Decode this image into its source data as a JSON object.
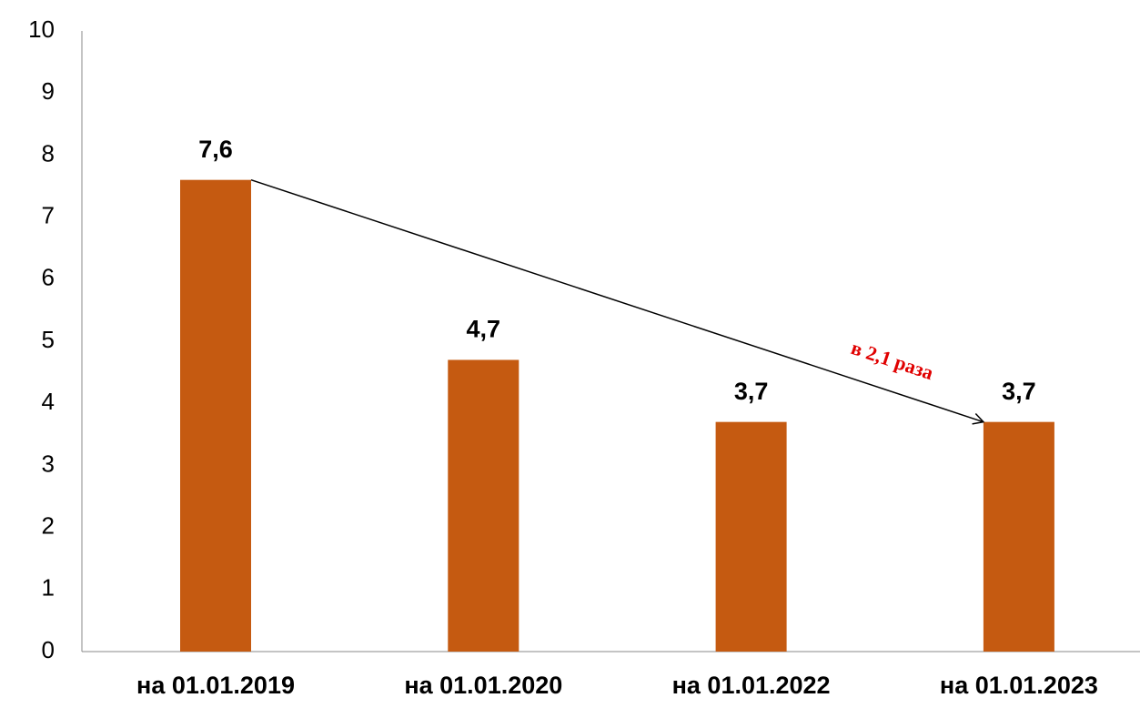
{
  "chart_data": {
    "type": "bar",
    "categories": [
      "на 01.01.2019",
      "на 01.01.2020",
      "на 01.01.2022",
      "на 01.01.2023"
    ],
    "values": [
      7.6,
      4.7,
      3.7,
      3.7
    ],
    "value_labels": [
      "7,6",
      "4,7",
      "3,7",
      "3,7"
    ],
    "color": "#c55a11",
    "ylim": [
      0,
      10
    ],
    "yticks": [
      0,
      1,
      2,
      3,
      4,
      5,
      6,
      7,
      8,
      9,
      10
    ],
    "grid": false,
    "annotation": "в 2,1 раза",
    "annotation_color": "#e00000"
  }
}
